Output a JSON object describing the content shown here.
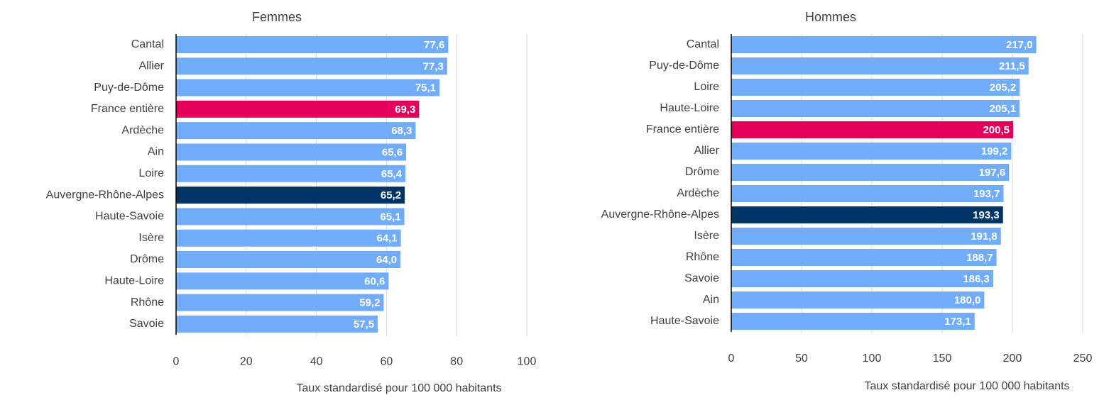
{
  "chart_data": [
    {
      "type": "barh",
      "title": "Femmes",
      "xlabel": "Taux standardisé pour 100 000 habitants",
      "categories": [
        "Cantal",
        "Allier",
        "Puy-de-Dôme",
        "France entière",
        "Ardèche",
        "Ain",
        "Loire",
        "Auvergne-Rhône-Alpes",
        "Haute-Savoie",
        "Isère",
        "Drôme",
        "Haute-Loire",
        "Rhône",
        "Savoie"
      ],
      "values": [
        77.6,
        77.3,
        75.1,
        69.3,
        68.3,
        65.6,
        65.4,
        65.2,
        65.1,
        64.1,
        64.0,
        60.6,
        59.2,
        57.5
      ],
      "value_labels": [
        "77,6",
        "77,3",
        "75,1",
        "69,3",
        "68,3",
        "65,6",
        "65,4",
        "65,2",
        "65,1",
        "64,1",
        "64,0",
        "60,6",
        "59,2",
        "57,5"
      ],
      "colors": [
        "#70acf8",
        "#70acf8",
        "#70acf8",
        "#e4005a",
        "#70acf8",
        "#70acf8",
        "#70acf8",
        "#003366",
        "#70acf8",
        "#70acf8",
        "#70acf8",
        "#70acf8",
        "#70acf8",
        "#70acf8"
      ],
      "xlim": [
        0,
        100
      ],
      "xticks": [
        0,
        20,
        40,
        60,
        80,
        100
      ],
      "grid": true
    },
    {
      "type": "barh",
      "title": "Hommes",
      "xlabel": "Taux standardisé pour 100 000 habitants",
      "categories": [
        "Cantal",
        "Puy-de-Dôme",
        "Loire",
        "Haute-Loire",
        "France entière",
        "Allier",
        "Drôme",
        "Ardèche",
        "Auvergne-Rhône-Alpes",
        "Isère",
        "Rhône",
        "Savoie",
        "Ain",
        "Haute-Savoie"
      ],
      "values": [
        217.0,
        211.5,
        205.2,
        205.1,
        200.5,
        199.2,
        197.6,
        193.7,
        193.3,
        191.8,
        188.7,
        186.3,
        180.0,
        173.1
      ],
      "value_labels": [
        "217,0",
        "211,5",
        "205,2",
        "205,1",
        "200,5",
        "199,2",
        "197,6",
        "193,7",
        "193,3",
        "191,8",
        "188,7",
        "186,3",
        "180,0",
        "173,1"
      ],
      "colors": [
        "#70acf8",
        "#70acf8",
        "#70acf8",
        "#70acf8",
        "#e4005a",
        "#70acf8",
        "#70acf8",
        "#70acf8",
        "#003366",
        "#70acf8",
        "#70acf8",
        "#70acf8",
        "#70acf8",
        "#70acf8"
      ],
      "xlim": [
        0,
        250
      ],
      "xticks": [
        0,
        50,
        100,
        150,
        200,
        250
      ],
      "grid": true
    }
  ]
}
